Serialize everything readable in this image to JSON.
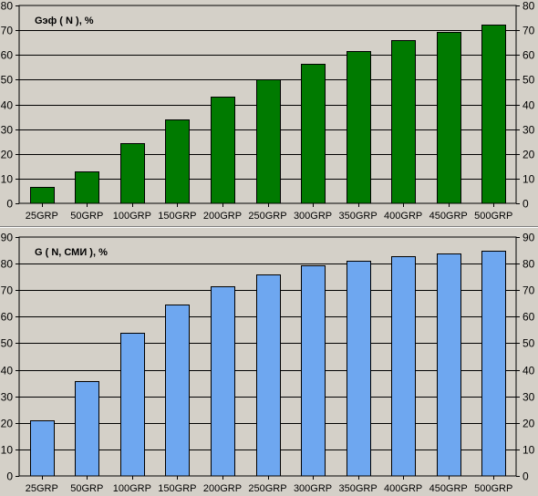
{
  "chart_data": [
    {
      "type": "bar",
      "title": "Gэф ( N ), %",
      "categories": [
        "25GRP",
        "50GRP",
        "100GRP",
        "150GRP",
        "200GRP",
        "250GRP",
        "300GRP",
        "350GRP",
        "400GRP",
        "450GRP",
        "500GRP"
      ],
      "values": [
        6.8,
        12.9,
        24.2,
        34.1,
        43.0,
        50.0,
        56.3,
        61.5,
        66.0,
        69.3,
        72.3
      ],
      "ylim": [
        0,
        80
      ],
      "yticks": [
        0,
        10,
        20,
        30,
        40,
        50,
        60,
        70,
        80
      ],
      "grid": true,
      "bar_color": "#007a00",
      "dual_axis": true
    },
    {
      "type": "bar",
      "title": "G ( N, СМИ ), %",
      "categories": [
        "25GRP",
        "50GRP",
        "100GRP",
        "150GRP",
        "200GRP",
        "250GRP",
        "300GRP",
        "350GRP",
        "400GRP",
        "450GRP",
        "500GRP"
      ],
      "values": [
        21.1,
        35.6,
        53.8,
        64.5,
        71.3,
        75.8,
        79.2,
        81.2,
        82.9,
        83.9,
        85.0
      ],
      "ylim": [
        0,
        90
      ],
      "yticks": [
        0,
        10,
        20,
        30,
        40,
        50,
        60,
        70,
        80,
        90
      ],
      "grid": true,
      "bar_color": "#6ea7f0",
      "dual_axis": true
    }
  ]
}
